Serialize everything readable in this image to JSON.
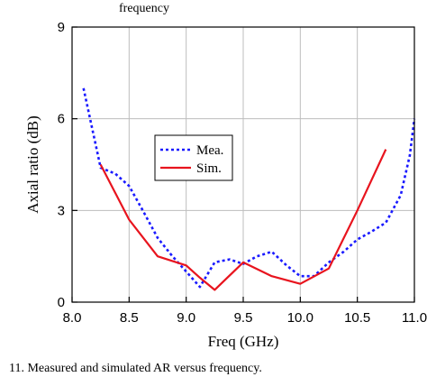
{
  "header_fragment": "frequency",
  "caption": "11.   Measured and simulated AR versus frequency.",
  "chart_data": {
    "type": "line",
    "xlabel": "Freq (GHz)",
    "ylabel": "Axial ratio (dB)",
    "xlim": [
      8.0,
      11.0
    ],
    "ylim": [
      0,
      9
    ],
    "xticks": [
      "8.0",
      "8.5",
      "9.0",
      "9.5",
      "10.0",
      "10.5",
      "11.0"
    ],
    "yticks": [
      "0",
      "3",
      "6",
      "9"
    ],
    "grid": true,
    "legend": "center-left",
    "series": [
      {
        "name": "Mea.",
        "style": "dotted",
        "color": "#1a1aff",
        "points": [
          [
            8.1,
            7.0
          ],
          [
            8.25,
            4.4
          ],
          [
            8.38,
            4.2
          ],
          [
            8.5,
            3.8
          ],
          [
            8.62,
            3.0
          ],
          [
            8.75,
            2.1
          ],
          [
            8.88,
            1.5
          ],
          [
            9.0,
            1.0
          ],
          [
            9.12,
            0.5
          ],
          [
            9.25,
            1.3
          ],
          [
            9.38,
            1.4
          ],
          [
            9.5,
            1.25
          ],
          [
            9.62,
            1.5
          ],
          [
            9.75,
            1.65
          ],
          [
            9.88,
            1.2
          ],
          [
            10.0,
            0.85
          ],
          [
            10.12,
            0.85
          ],
          [
            10.25,
            1.3
          ],
          [
            10.38,
            1.65
          ],
          [
            10.5,
            2.05
          ],
          [
            10.62,
            2.3
          ],
          [
            10.75,
            2.6
          ],
          [
            10.88,
            3.5
          ],
          [
            10.96,
            4.8
          ],
          [
            11.0,
            6.0
          ]
        ]
      },
      {
        "name": "Sim.",
        "style": "solid",
        "color": "#e8141e",
        "points": [
          [
            8.25,
            4.5
          ],
          [
            8.5,
            2.7
          ],
          [
            8.75,
            1.5
          ],
          [
            9.0,
            1.2
          ],
          [
            9.12,
            0.8
          ],
          [
            9.25,
            0.4
          ],
          [
            9.5,
            1.3
          ],
          [
            9.75,
            0.85
          ],
          [
            10.0,
            0.6
          ],
          [
            10.25,
            1.1
          ],
          [
            10.5,
            3.0
          ],
          [
            10.75,
            5.0
          ]
        ]
      }
    ]
  }
}
